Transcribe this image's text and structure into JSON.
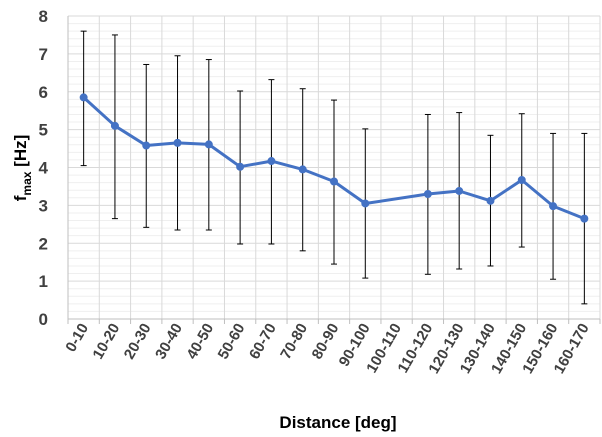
{
  "chart_data": {
    "type": "line",
    "title": "",
    "xlabel": "Distance [deg]",
    "ylabel_main": "f",
    "ylabel_sub": "max",
    "ylabel_unit": " [Hz]",
    "ylim": [
      0,
      8
    ],
    "yticks": [
      0,
      1,
      2,
      3,
      4,
      5,
      6,
      7,
      8
    ],
    "grid": true,
    "categories": [
      "0-10",
      "10-20",
      "20-30",
      "30-40",
      "40-50",
      "50-60",
      "60-70",
      "70-80",
      "80-90",
      "90-100",
      "100-110",
      "110-120",
      "120-130",
      "130-140",
      "140-150",
      "150-160",
      "160-170"
    ],
    "series": [
      {
        "values": [
          5.85,
          5.1,
          4.58,
          4.65,
          4.61,
          4.02,
          4.17,
          3.95,
          3.63,
          3.05,
          null,
          3.3,
          3.38,
          3.12,
          3.67,
          2.98,
          2.65
        ],
        "error_upper": [
          7.6,
          7.5,
          6.72,
          6.95,
          6.85,
          6.02,
          6.32,
          6.08,
          5.78,
          5.02,
          null,
          5.4,
          5.45,
          4.85,
          5.42,
          4.9,
          4.9
        ],
        "error_lower": [
          4.05,
          2.65,
          2.42,
          2.35,
          2.35,
          1.98,
          1.98,
          1.8,
          1.45,
          1.08,
          null,
          1.18,
          1.32,
          1.4,
          1.9,
          1.05,
          0.4
        ]
      }
    ],
    "colors": {
      "line": "#4472C4",
      "errorbar": "#000000",
      "grid": "#D9D9D9",
      "axis": "#BFBFBF"
    }
  }
}
